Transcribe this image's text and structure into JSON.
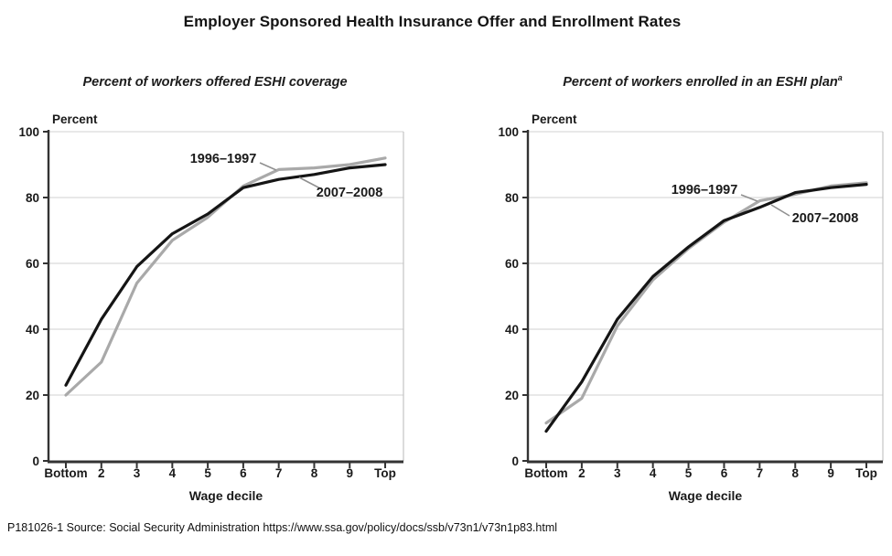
{
  "page": {
    "title": "Employer Sponsored Health Insurance Offer and Enrollment Rates",
    "source_note": "P181026-1 Source: Social Security Administration https://www.ssa.gov/policy/docs/ssb/v73n1/v73n1p83.html"
  },
  "colors": {
    "series_1996_1997": "#a9a9a9",
    "series_2007_2008": "#151515",
    "gridline": "#d9d9d9",
    "axis": "#333333",
    "callout_line": "#909090"
  },
  "chart_data": [
    {
      "type": "line",
      "title": "Percent of workers offered ESHI coverage",
      "title_superscript": "",
      "ylabel": "Percent",
      "xlabel": "Wage decile",
      "ylim": [
        0,
        100
      ],
      "yticks": [
        0,
        20,
        40,
        60,
        80,
        100
      ],
      "grid": true,
      "legend_position": "inline-callouts",
      "categories": [
        "Bottom",
        "2",
        "3",
        "4",
        "5",
        "6",
        "7",
        "8",
        "9",
        "Top"
      ],
      "series": [
        {
          "name": "1996–1997",
          "color": "#a9a9a9",
          "values": [
            20,
            30,
            54,
            67,
            74,
            83.5,
            88.5,
            89,
            90,
            92
          ]
        },
        {
          "name": "2007–2008",
          "color": "#151515",
          "values": [
            23,
            43,
            59,
            69,
            75,
            83,
            85.5,
            87,
            89,
            90
          ]
        }
      ],
      "annotations": [
        {
          "text": "1996–1997",
          "tx": 244,
          "ty": 178,
          "line": [
            284,
            178,
            302,
            186
          ]
        },
        {
          "text": "2007–2008",
          "tx": 382,
          "ty": 215,
          "line": [
            327,
            194,
            350,
            206
          ]
        }
      ]
    },
    {
      "type": "line",
      "title": "Percent of workers enrolled in an ESHI plan",
      "title_superscript": "a",
      "ylabel": "Percent",
      "xlabel": "Wage decile",
      "ylim": [
        0,
        100
      ],
      "yticks": [
        0,
        20,
        40,
        60,
        80,
        100
      ],
      "grid": true,
      "legend_position": "inline-callouts",
      "categories": [
        "Bottom",
        "2",
        "3",
        "4",
        "5",
        "6",
        "7",
        "8",
        "9",
        "Top"
      ],
      "series": [
        {
          "name": "1996–1997",
          "color": "#a9a9a9",
          "values": [
            11.5,
            19,
            41,
            55,
            64.5,
            72.5,
            79,
            81,
            83.5,
            84.5
          ]
        },
        {
          "name": "2007–2008",
          "color": "#151515",
          "values": [
            9,
            24,
            43,
            56,
            65,
            73,
            77,
            81.5,
            83,
            84
          ]
        }
      ],
      "annotations": [
        {
          "text": "1996–1997",
          "tx": 770,
          "ty": 212,
          "line": [
            810,
            213,
            828,
            220
          ]
        },
        {
          "text": "2007–2008",
          "tx": 902,
          "ty": 243,
          "line": [
            843,
            224,
            863,
            236
          ]
        }
      ]
    }
  ]
}
